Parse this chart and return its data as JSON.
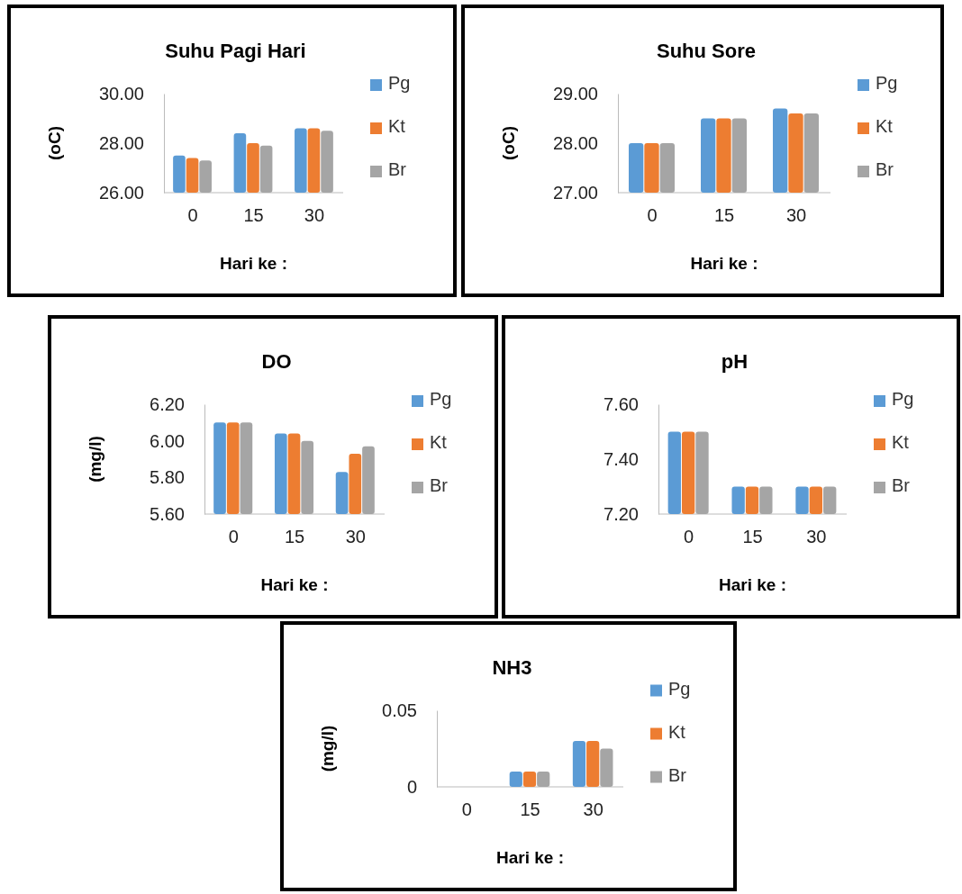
{
  "chart_data": [
    {
      "type": "bar",
      "title": "Suhu Pagi Hari",
      "xlabel": "Hari ke :",
      "ylabel": "(oC)",
      "categories": [
        "0",
        "15",
        "30"
      ],
      "ylim": [
        26,
        30
      ],
      "yticks": [
        {
          "value": 26,
          "label": "26.00"
        },
        {
          "value": 28,
          "label": "28.00"
        },
        {
          "value": 30,
          "label": "30.00"
        }
      ],
      "legend": "right",
      "series": [
        {
          "name": "Pg",
          "color": "#5b9bd5",
          "values": [
            27.5,
            28.4,
            28.6
          ]
        },
        {
          "name": "Kt",
          "color": "#ed7d31",
          "values": [
            27.4,
            28.0,
            28.6
          ]
        },
        {
          "name": "Br",
          "color": "#a5a5a5",
          "values": [
            27.3,
            27.9,
            28.5
          ]
        }
      ]
    },
    {
      "type": "bar",
      "title": "Suhu Sore",
      "xlabel": "Hari ke :",
      "ylabel": "(oC)",
      "categories": [
        "0",
        "15",
        "30"
      ],
      "ylim": [
        27,
        29
      ],
      "yticks": [
        {
          "value": 27,
          "label": "27.00"
        },
        {
          "value": 28,
          "label": "28.00"
        },
        {
          "value": 29,
          "label": "29.00"
        }
      ],
      "legend": "right",
      "series": [
        {
          "name": "Pg",
          "color": "#5b9bd5",
          "values": [
            28.0,
            28.5,
            28.7
          ]
        },
        {
          "name": "Kt",
          "color": "#ed7d31",
          "values": [
            28.0,
            28.5,
            28.6
          ]
        },
        {
          "name": "Br",
          "color": "#a5a5a5",
          "values": [
            28.0,
            28.5,
            28.6
          ]
        }
      ]
    },
    {
      "type": "bar",
      "title": "DO",
      "xlabel": "Hari ke :",
      "ylabel": "(mg/l)",
      "categories": [
        "0",
        "15",
        "30"
      ],
      "ylim": [
        5.6,
        6.2
      ],
      "yticks": [
        {
          "value": 5.6,
          "label": "5.60"
        },
        {
          "value": 5.8,
          "label": "5.80"
        },
        {
          "value": 6.0,
          "label": "6.00"
        },
        {
          "value": 6.2,
          "label": "6.20"
        }
      ],
      "legend": "right",
      "series": [
        {
          "name": "Pg",
          "color": "#5b9bd5",
          "values": [
            6.1,
            6.04,
            5.83
          ]
        },
        {
          "name": "Kt",
          "color": "#ed7d31",
          "values": [
            6.1,
            6.04,
            5.93
          ]
        },
        {
          "name": "Br",
          "color": "#a5a5a5",
          "values": [
            6.1,
            6.0,
            5.97
          ]
        }
      ]
    },
    {
      "type": "bar",
      "title": "pH",
      "xlabel": "Hari ke :",
      "categories": [
        "0",
        "15",
        "30"
      ],
      "ylim": [
        7.2,
        7.6
      ],
      "yticks": [
        {
          "value": 7.2,
          "label": "7.20"
        },
        {
          "value": 7.4,
          "label": "7.40"
        },
        {
          "value": 7.6,
          "label": "7.60"
        }
      ],
      "legend": "right",
      "series": [
        {
          "name": "Pg",
          "color": "#5b9bd5",
          "values": [
            7.5,
            7.3,
            7.3
          ]
        },
        {
          "name": "Kt",
          "color": "#ed7d31",
          "values": [
            7.5,
            7.3,
            7.3
          ]
        },
        {
          "name": "Br",
          "color": "#a5a5a5",
          "values": [
            7.5,
            7.3,
            7.3
          ]
        }
      ]
    },
    {
      "type": "bar",
      "title": "NH3",
      "xlabel": "Hari ke :",
      "ylabel": "(mg/l)",
      "categories": [
        "0",
        "15",
        "30"
      ],
      "ylim": [
        0,
        0.05
      ],
      "yticks": [
        0,
        0.05
      ],
      "legend": "right",
      "series": [
        {
          "name": "Pg",
          "color": "#5b9bd5",
          "values": [
            0,
            0.01,
            0.03
          ]
        },
        {
          "name": "Kt",
          "color": "#ed7d31",
          "values": [
            0,
            0.01,
            0.03
          ]
        },
        {
          "name": "Br",
          "color": "#a5a5a5",
          "values": [
            0,
            0.01,
            0.025
          ]
        }
      ]
    }
  ]
}
